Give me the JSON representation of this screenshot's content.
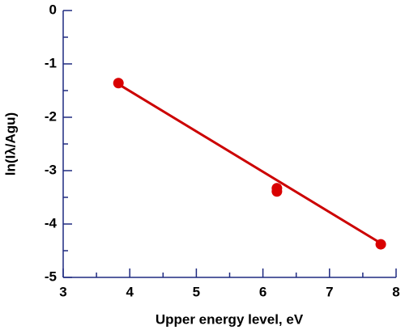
{
  "chart_data": {
    "type": "scatter",
    "x_label": "Upper energy level, eV",
    "y_label": "ln(Iλ/Agu)",
    "xlim": [
      3,
      8
    ],
    "xticks": [
      3,
      4,
      5,
      6,
      7,
      8
    ],
    "ylim": [
      -5,
      0
    ],
    "yticks": [
      -5,
      -4,
      -3,
      -2,
      -1,
      0
    ],
    "minor_ticks": true,
    "axis_color": "#1f2a80",
    "series": [
      {
        "type": "scatter",
        "color": "#d90000",
        "x": [
          3.83,
          6.21,
          6.21,
          7.77
        ],
        "values": [
          -1.36,
          -3.33,
          -3.39,
          -4.38
        ]
      },
      {
        "type": "line",
        "color": "#cc0000",
        "x": [
          3.83,
          7.73
        ],
        "values": [
          -1.38,
          -4.33
        ]
      }
    ]
  }
}
